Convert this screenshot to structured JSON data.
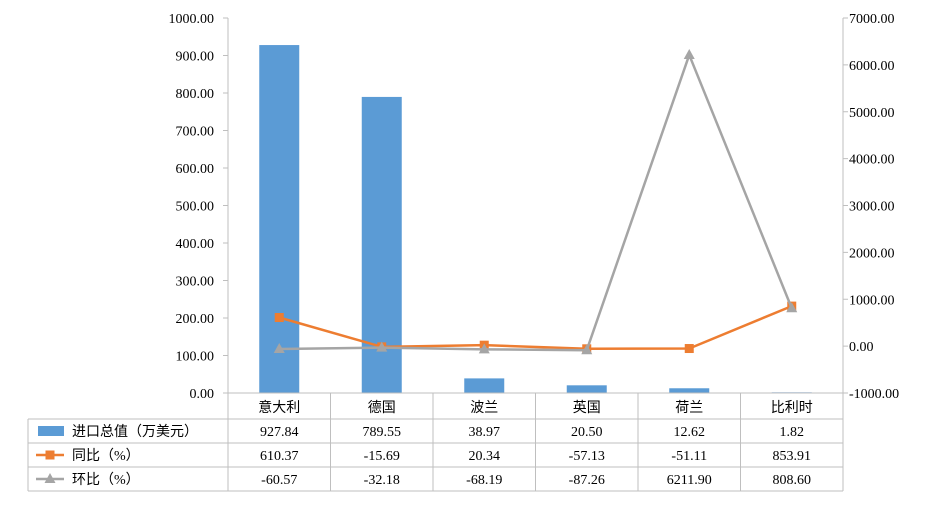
{
  "chart_data": {
    "type": "bar+line",
    "categories": [
      "意大利",
      "德国",
      "波兰",
      "英国",
      "荷兰",
      "比利时"
    ],
    "series": [
      {
        "name": "进口总值（万美元）",
        "type": "bar",
        "axis": "left",
        "color": "#5B9BD5",
        "values": [
          927.84,
          789.55,
          38.97,
          20.5,
          12.62,
          1.82
        ],
        "labels": [
          "927.84",
          "789.55",
          "38.97",
          "20.50",
          "12.62",
          "1.82"
        ]
      },
      {
        "name": "同比（%）",
        "type": "line",
        "axis": "right",
        "color": "#ED7D31",
        "marker": "square",
        "values": [
          610.37,
          -15.69,
          20.34,
          -57.13,
          -51.11,
          853.91
        ],
        "labels": [
          "610.37",
          "-15.69",
          "20.34",
          "-57.13",
          "-51.11",
          "853.91"
        ]
      },
      {
        "name": "环比（%）",
        "type": "line",
        "axis": "right",
        "color": "#A5A5A5",
        "marker": "triangle",
        "values": [
          -60.57,
          -32.18,
          -68.19,
          -87.26,
          6211.9,
          808.6
        ],
        "labels": [
          "-60.57",
          "-32.18",
          "-68.19",
          "-87.26",
          "6211.90",
          "808.60"
        ]
      }
    ],
    "y_left": {
      "min": 0,
      "max": 1000,
      "step": 100,
      "tick_labels": [
        "0.00",
        "100.00",
        "200.00",
        "300.00",
        "400.00",
        "500.00",
        "600.00",
        "700.00",
        "800.00",
        "900.00",
        "1000.00"
      ]
    },
    "y_right": {
      "min": -1000,
      "max": 7000,
      "step": 1000,
      "tick_labels": [
        "-1000.00",
        "0.00",
        "1000.00",
        "2000.00",
        "3000.00",
        "4000.00",
        "5000.00",
        "6000.00",
        "7000.00"
      ]
    },
    "grid": false,
    "legend": "data-table"
  }
}
